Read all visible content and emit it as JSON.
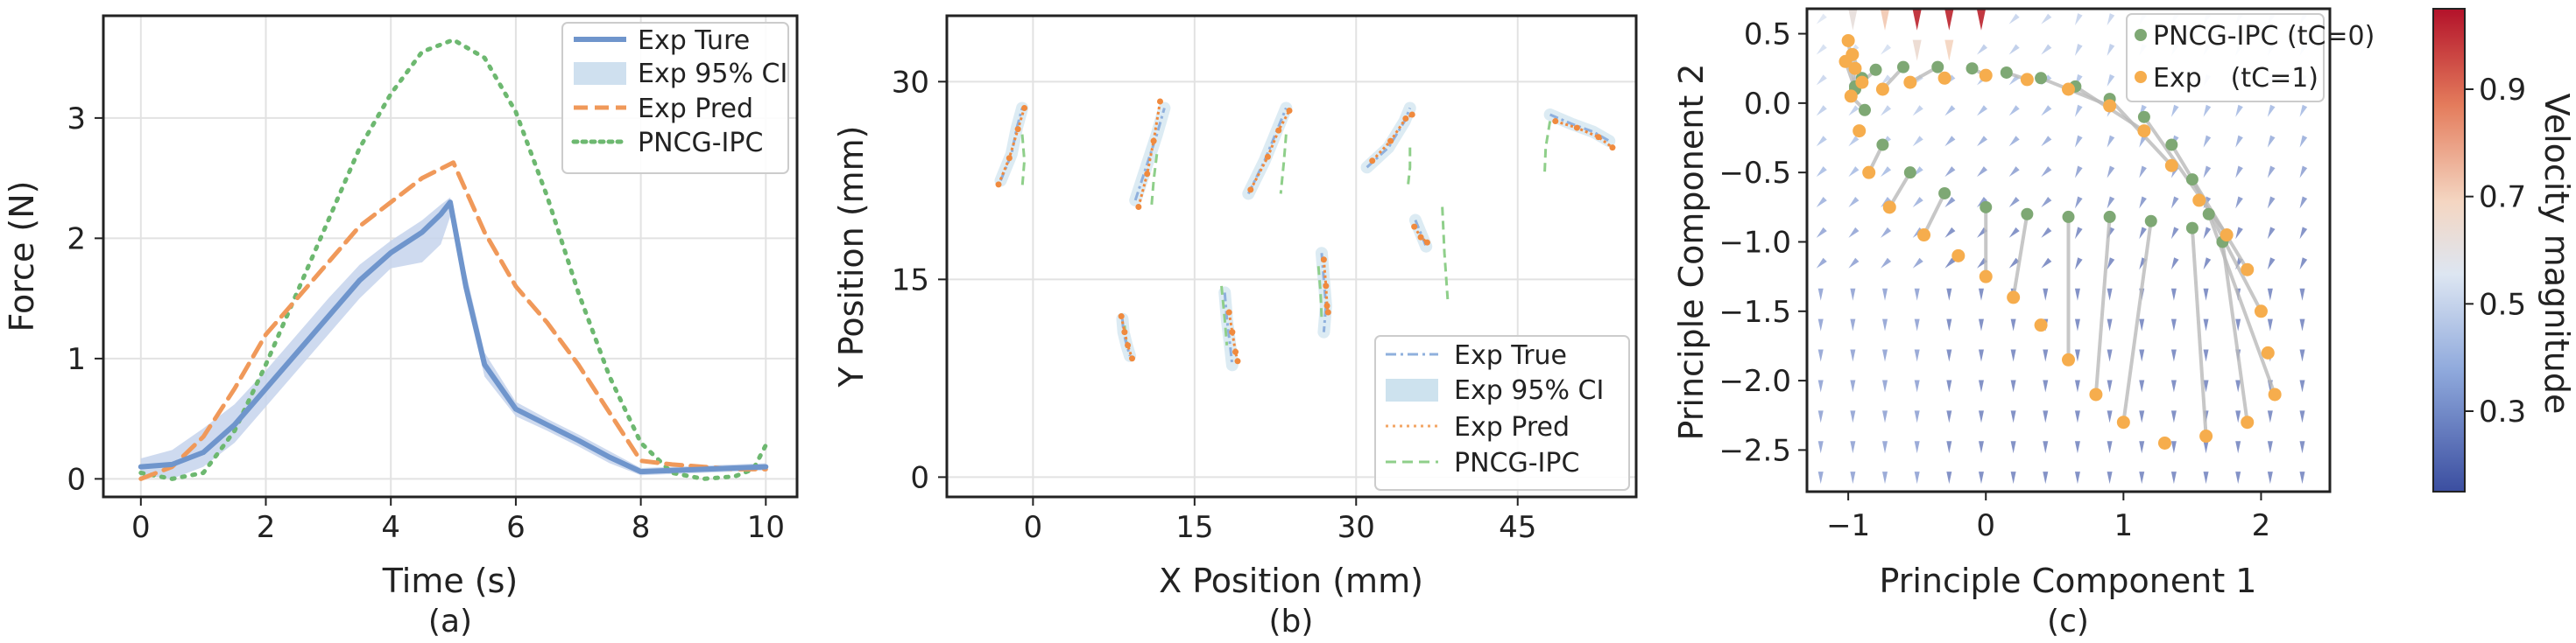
{
  "chart_data": [
    {
      "type": "line",
      "caption": "(a)",
      "xlabel": "Time (s)",
      "ylabel": "Force (N)",
      "xlim": [
        -0.6,
        10.5
      ],
      "ylim": [
        -0.15,
        3.85
      ],
      "xticks": [
        0,
        2,
        4,
        6,
        8,
        10
      ],
      "yticks": [
        0,
        1,
        2,
        3
      ],
      "legend_position": "top-right",
      "grid": true,
      "series": [
        {
          "name": "Exp Ture",
          "style": "solid",
          "color": "#6f95cc",
          "x": [
            0,
            0.5,
            1.0,
            1.5,
            2.0,
            2.5,
            3.0,
            3.5,
            4.0,
            4.5,
            4.8,
            4.95,
            5.2,
            5.5,
            6.0,
            6.5,
            7.0,
            7.5,
            8.0,
            8.5,
            9.0,
            9.5,
            10.0
          ],
          "y": [
            0.1,
            0.12,
            0.22,
            0.45,
            0.75,
            1.05,
            1.35,
            1.65,
            1.88,
            2.05,
            2.2,
            2.3,
            1.6,
            0.95,
            0.58,
            0.45,
            0.32,
            0.18,
            0.06,
            0.07,
            0.08,
            0.09,
            0.1
          ]
        },
        {
          "name": "Exp 95% CI",
          "style": "band",
          "color": "#c6d3ec",
          "x": [
            0,
            0.5,
            1.0,
            1.5,
            2.0,
            2.5,
            3.0,
            3.5,
            4.0,
            4.5,
            4.8,
            4.95,
            5.2,
            5.5,
            6.0,
            6.5,
            7.0,
            7.5,
            8.0,
            8.5,
            9.0,
            9.5,
            10.0
          ],
          "lower": [
            0.03,
            0.0,
            0.1,
            0.3,
            0.6,
            0.9,
            1.2,
            1.5,
            1.75,
            1.8,
            1.95,
            2.18,
            1.5,
            0.85,
            0.52,
            0.4,
            0.27,
            0.13,
            0.03,
            0.04,
            0.05,
            0.06,
            0.07
          ],
          "upper": [
            0.17,
            0.24,
            0.42,
            0.62,
            0.9,
            1.2,
            1.5,
            1.78,
            1.98,
            2.15,
            2.28,
            2.34,
            1.72,
            1.05,
            0.64,
            0.5,
            0.37,
            0.23,
            0.09,
            0.1,
            0.11,
            0.12,
            0.13
          ]
        },
        {
          "name": "Exp Pred",
          "style": "dashed",
          "color": "#f0995a",
          "x": [
            0,
            0.5,
            1.0,
            1.5,
            2.0,
            2.5,
            3.0,
            3.5,
            4.0,
            4.5,
            5.0,
            5.5,
            6.0,
            6.5,
            7.0,
            7.5,
            8.0,
            8.5,
            9.0,
            9.5,
            10.0
          ],
          "y": [
            0.0,
            0.1,
            0.35,
            0.75,
            1.2,
            1.5,
            1.8,
            2.1,
            2.3,
            2.5,
            2.63,
            2.05,
            1.6,
            1.3,
            0.95,
            0.55,
            0.15,
            0.12,
            0.1,
            0.08,
            0.08
          ]
        },
        {
          "name": "PNCG-IPC",
          "style": "dotted",
          "color": "#6db870",
          "x": [
            0,
            0.5,
            1.0,
            1.5,
            2.0,
            2.5,
            3.0,
            3.5,
            4.0,
            4.5,
            5.0,
            5.5,
            6.0,
            6.5,
            7.0,
            7.5,
            8.0,
            8.5,
            9.0,
            9.5,
            9.8,
            10.0
          ],
          "y": [
            0.05,
            0.0,
            0.05,
            0.4,
            0.95,
            1.55,
            2.15,
            2.75,
            3.2,
            3.55,
            3.65,
            3.5,
            3.05,
            2.35,
            1.55,
            0.85,
            0.3,
            0.05,
            0.0,
            0.02,
            0.08,
            0.28
          ]
        }
      ]
    },
    {
      "type": "line",
      "caption": "(b)",
      "xlabel": "X Position (mm)",
      "ylabel": "Y Position (mm)",
      "xlim": [
        -8,
        56
      ],
      "ylim": [
        -1.5,
        35
      ],
      "xticks": [
        0,
        15,
        30,
        45
      ],
      "yticks": [
        0,
        15,
        30
      ],
      "legend_position": "bottom-right",
      "grid": true,
      "legend": [
        {
          "name": "Exp True",
          "style": "dashdot",
          "color": "#8fb0dd"
        },
        {
          "name": "Exp 95% CI",
          "style": "band",
          "color": "#cde2ee"
        },
        {
          "name": "Exp Pred",
          "style": "dotted-marker",
          "color": "#f3a664"
        },
        {
          "name": "PNCG-IPC",
          "style": "dashed",
          "color": "#8fcf8a"
        }
      ],
      "trajectories": [
        {
          "true": [
            [
              -3.0,
              22.5
            ],
            [
              -2.0,
              24.5
            ],
            [
              -1.5,
              26.5
            ],
            [
              -1.0,
              28.0
            ]
          ],
          "pred": [
            [
              -3.2,
              22.2
            ],
            [
              -2.2,
              24.2
            ],
            [
              -1.4,
              26.4
            ],
            [
              -0.8,
              28.0
            ]
          ],
          "ipc": [
            [
              -1.0,
              26.0
            ],
            [
              -0.8,
              24.0
            ],
            [
              -1.0,
              22.0
            ]
          ]
        },
        {
          "true": [
            [
              9.5,
              21.0
            ],
            [
              10.5,
              23.5
            ],
            [
              11.5,
              26.0
            ],
            [
              12.2,
              28.0
            ]
          ],
          "pred": [
            [
              9.8,
              20.5
            ],
            [
              10.6,
              23.0
            ],
            [
              11.2,
              25.5
            ],
            [
              11.8,
              28.5
            ]
          ],
          "ipc": [
            [
              11.5,
              24.5
            ],
            [
              11.2,
              22.5
            ],
            [
              11.0,
              20.5
            ]
          ]
        },
        {
          "true": [
            [
              20.0,
              21.5
            ],
            [
              21.5,
              24.0
            ],
            [
              22.5,
              26.0
            ],
            [
              23.5,
              28.0
            ]
          ],
          "pred": [
            [
              20.2,
              21.8
            ],
            [
              21.8,
              24.3
            ],
            [
              22.8,
              26.3
            ],
            [
              23.8,
              27.8
            ]
          ],
          "ipc": [
            [
              23.5,
              26.0
            ],
            [
              23.3,
              24.0
            ],
            [
              23.0,
              21.5
            ]
          ]
        },
        {
          "true": [
            [
              31.0,
              23.5
            ],
            [
              33.0,
              25.0
            ],
            [
              34.5,
              27.0
            ],
            [
              35.0,
              28.0
            ]
          ],
          "pred": [
            [
              31.5,
              24.0
            ],
            [
              33.2,
              25.5
            ],
            [
              34.6,
              27.2
            ],
            [
              35.2,
              27.5
            ]
          ],
          "ipc": [
            [
              35.0,
              25.0
            ],
            [
              35.0,
              23.5
            ],
            [
              34.8,
              22.0
            ]
          ]
        },
        {
          "true": [
            [
              48.0,
              27.5
            ],
            [
              50.0,
              26.8
            ],
            [
              52.0,
              26.2
            ],
            [
              53.5,
              25.5
            ]
          ],
          "pred": [
            [
              48.5,
              27.0
            ],
            [
              50.5,
              26.5
            ],
            [
              52.5,
              25.8
            ],
            [
              53.8,
              25.0
            ]
          ],
          "ipc": [
            [
              48.0,
              27.0
            ],
            [
              47.6,
              25.0
            ],
            [
              47.5,
              23.0
            ]
          ]
        },
        {
          "true": [
            [
              8.3,
              12.0
            ],
            [
              8.4,
              11.0
            ],
            [
              8.7,
              10.0
            ],
            [
              9.0,
              9.2
            ]
          ],
          "pred": [
            [
              8.2,
              12.2
            ],
            [
              8.5,
              11.0
            ],
            [
              8.8,
              10.0
            ],
            [
              9.2,
              9.0
            ]
          ],
          "ipc": [
            [
              8.5,
              11.5
            ],
            [
              8.6,
              10.5
            ],
            [
              8.8,
              9.5
            ]
          ]
        },
        {
          "true": [
            [
              17.8,
              14.0
            ],
            [
              18.0,
              12.0
            ],
            [
              18.3,
              10.0
            ],
            [
              18.5,
              8.5
            ]
          ],
          "pred": [
            [
              18.2,
              12.5
            ],
            [
              18.5,
              11.0
            ],
            [
              18.8,
              9.5
            ],
            [
              19.0,
              8.8
            ]
          ],
          "ipc": [
            [
              17.5,
              14.5
            ],
            [
              17.8,
              12.0
            ],
            [
              18.0,
              10.0
            ]
          ]
        },
        {
          "true": [
            [
              26.8,
              17.0
            ],
            [
              27.0,
              15.0
            ],
            [
              27.2,
              13.0
            ],
            [
              27.0,
              11.0
            ]
          ],
          "pred": [
            [
              27.0,
              16.5
            ],
            [
              27.2,
              14.5
            ],
            [
              27.3,
              13.0
            ],
            [
              27.4,
              12.5
            ]
          ],
          "ipc": [
            [
              26.5,
              16.0
            ],
            [
              26.7,
              14.0
            ],
            [
              26.8,
              12.0
            ]
          ]
        },
        {
          "true": [
            [
              35.5,
              19.5
            ],
            [
              36.0,
              18.5
            ],
            [
              36.5,
              17.5
            ]
          ],
          "pred": [
            [
              35.4,
              19.0
            ],
            [
              36.0,
              18.2
            ],
            [
              36.6,
              17.8
            ]
          ],
          "ipc": [
            [
              38.0,
              20.5
            ],
            [
              38.2,
              17.0
            ],
            [
              38.5,
              13.5
            ]
          ]
        }
      ]
    },
    {
      "type": "scatter",
      "caption": "(c)",
      "xlabel": "Principle Component 1",
      "ylabel": "Principle Component 2",
      "xlim": [
        -1.3,
        2.5
      ],
      "ylim": [
        -2.8,
        0.68
      ],
      "xticks": [
        -1,
        0,
        1,
        2
      ],
      "xtick_labels": [
        "−1",
        "0",
        "1",
        "2"
      ],
      "yticks": [
        0.5,
        0.0,
        -0.5,
        -1.0,
        -1.5,
        -2.0,
        -2.5
      ],
      "ytick_labels": [
        "0.5",
        "0.0",
        "−0.5",
        "−1.0",
        "−1.5",
        "−2.0",
        "−2.5"
      ],
      "legend_position": "top-right",
      "legend": [
        {
          "name": "PNCG-IPC",
          "sub": "(tC=0)",
          "color": "#7ea874"
        },
        {
          "name": "Exp",
          "sub": "(tC=1)",
          "color": "#f6ad4d"
        }
      ],
      "colorbar": {
        "label": "Velocity magnitude",
        "ticks": [
          0.3,
          0.5,
          0.7,
          0.9
        ],
        "range": [
          0.15,
          1.05
        ]
      },
      "ipc_path": [
        [
          -0.95,
          0.12
        ],
        [
          -0.9,
          0.18
        ],
        [
          -0.8,
          0.24
        ],
        [
          -0.6,
          0.26
        ],
        [
          -0.35,
          0.26
        ],
        [
          -0.1,
          0.25
        ],
        [
          0.15,
          0.22
        ],
        [
          0.4,
          0.18
        ],
        [
          0.65,
          0.12
        ],
        [
          0.9,
          0.03
        ],
        [
          1.15,
          -0.1
        ],
        [
          1.35,
          -0.3
        ],
        [
          1.5,
          -0.55
        ],
        [
          1.62,
          -0.8
        ],
        [
          1.72,
          -1.0
        ],
        [
          1.5,
          -0.9
        ],
        [
          1.2,
          -0.85
        ],
        [
          0.9,
          -0.82
        ],
        [
          0.6,
          -0.82
        ],
        [
          0.3,
          -0.8
        ],
        [
          0.0,
          -0.75
        ],
        [
          -0.3,
          -0.65
        ],
        [
          -0.55,
          -0.5
        ],
        [
          -0.75,
          -0.3
        ],
        [
          -0.88,
          -0.05
        ],
        [
          -0.95,
          0.1
        ]
      ],
      "exp_path": [
        [
          -1.0,
          0.45
        ],
        [
          -0.97,
          0.35
        ],
        [
          -0.95,
          0.25
        ],
        [
          -0.9,
          0.15
        ],
        [
          -0.75,
          0.1
        ],
        [
          -0.55,
          0.15
        ],
        [
          -0.3,
          0.18
        ],
        [
          0.0,
          0.2
        ],
        [
          0.3,
          0.17
        ],
        [
          0.6,
          0.1
        ],
        [
          0.9,
          -0.02
        ],
        [
          1.15,
          -0.2
        ],
        [
          1.35,
          -0.45
        ],
        [
          1.55,
          -0.7
        ],
        [
          1.75,
          -0.95
        ],
        [
          1.9,
          -1.2
        ],
        [
          2.0,
          -1.5
        ],
        [
          2.05,
          -1.8
        ],
        [
          2.1,
          -2.1
        ],
        [
          1.9,
          -2.3
        ],
        [
          1.6,
          -2.4
        ],
        [
          1.3,
          -2.45
        ],
        [
          1.0,
          -2.3
        ],
        [
          0.8,
          -2.1
        ],
        [
          0.6,
          -1.85
        ],
        [
          0.4,
          -1.6
        ],
        [
          0.2,
          -1.4
        ],
        [
          0.0,
          -1.25
        ],
        [
          -0.2,
          -1.1
        ],
        [
          -0.45,
          -0.95
        ],
        [
          -0.7,
          -0.75
        ],
        [
          -0.85,
          -0.5
        ],
        [
          -0.92,
          -0.2
        ],
        [
          -0.98,
          0.05
        ],
        [
          -1.02,
          0.3
        ]
      ],
      "arrow_field": {
        "x_range": [
          -1.2,
          2.4
        ],
        "y_range": [
          -2.7,
          0.6
        ],
        "hot_points": [
          [
            -0.95,
            0.55,
            0.62
          ],
          [
            -0.72,
            0.55,
            0.72
          ],
          [
            -0.5,
            0.55,
            1.0
          ],
          [
            -0.25,
            0.55,
            1.0
          ],
          [
            0.0,
            0.55,
            1.0
          ],
          [
            -0.25,
            0.38,
            0.7
          ],
          [
            -0.5,
            0.38,
            0.65
          ]
        ]
      }
    }
  ]
}
